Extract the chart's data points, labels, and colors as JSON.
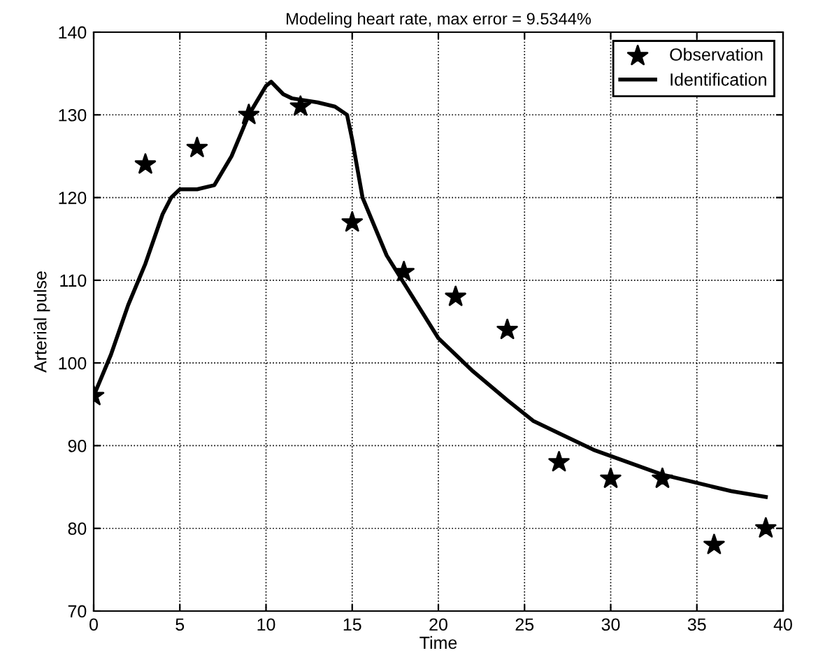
{
  "chart_data": {
    "type": "line",
    "title": "Modeling heart rate, max error = 9.5344%",
    "xlabel": "Time",
    "ylabel": "Arterial pulse",
    "xlim": [
      0,
      40
    ],
    "ylim": [
      70,
      140
    ],
    "xticks": [
      0,
      5,
      10,
      15,
      20,
      25,
      30,
      35,
      40
    ],
    "yticks": [
      70,
      80,
      90,
      100,
      110,
      120,
      130,
      140
    ],
    "grid": true,
    "legend": "top right",
    "series": [
      {
        "name": "Observation",
        "type": "scatter",
        "marker": "star",
        "color": "#000000",
        "x": [
          0,
          3,
          6,
          9,
          12,
          15,
          18,
          21,
          24,
          27,
          30,
          33,
          36,
          39
        ],
        "values": [
          96,
          124,
          126,
          130,
          131,
          117,
          111,
          108,
          104,
          88,
          86,
          86,
          78,
          80
        ]
      },
      {
        "name": "Identification",
        "marker": "none",
        "line_style": "solid",
        "color": "#000000",
        "x": [
          0,
          1,
          2,
          3,
          4,
          4.5,
          5,
          6,
          7,
          8,
          9,
          10,
          10.3,
          11,
          11.5,
          13,
          14,
          14.7,
          15,
          15.6,
          17,
          18.5,
          20,
          22,
          24,
          25.5,
          27,
          29,
          31,
          33,
          35,
          37,
          39
        ],
        "values": [
          96,
          101,
          107,
          112,
          118,
          120,
          121,
          121,
          121.5,
          125,
          130,
          133.5,
          134,
          132.5,
          132,
          131.5,
          131,
          130,
          127,
          120,
          113,
          108,
          103,
          99,
          95.5,
          93,
          91.5,
          89.5,
          88,
          86.5,
          85.5,
          84.5,
          83.8
        ]
      }
    ]
  }
}
